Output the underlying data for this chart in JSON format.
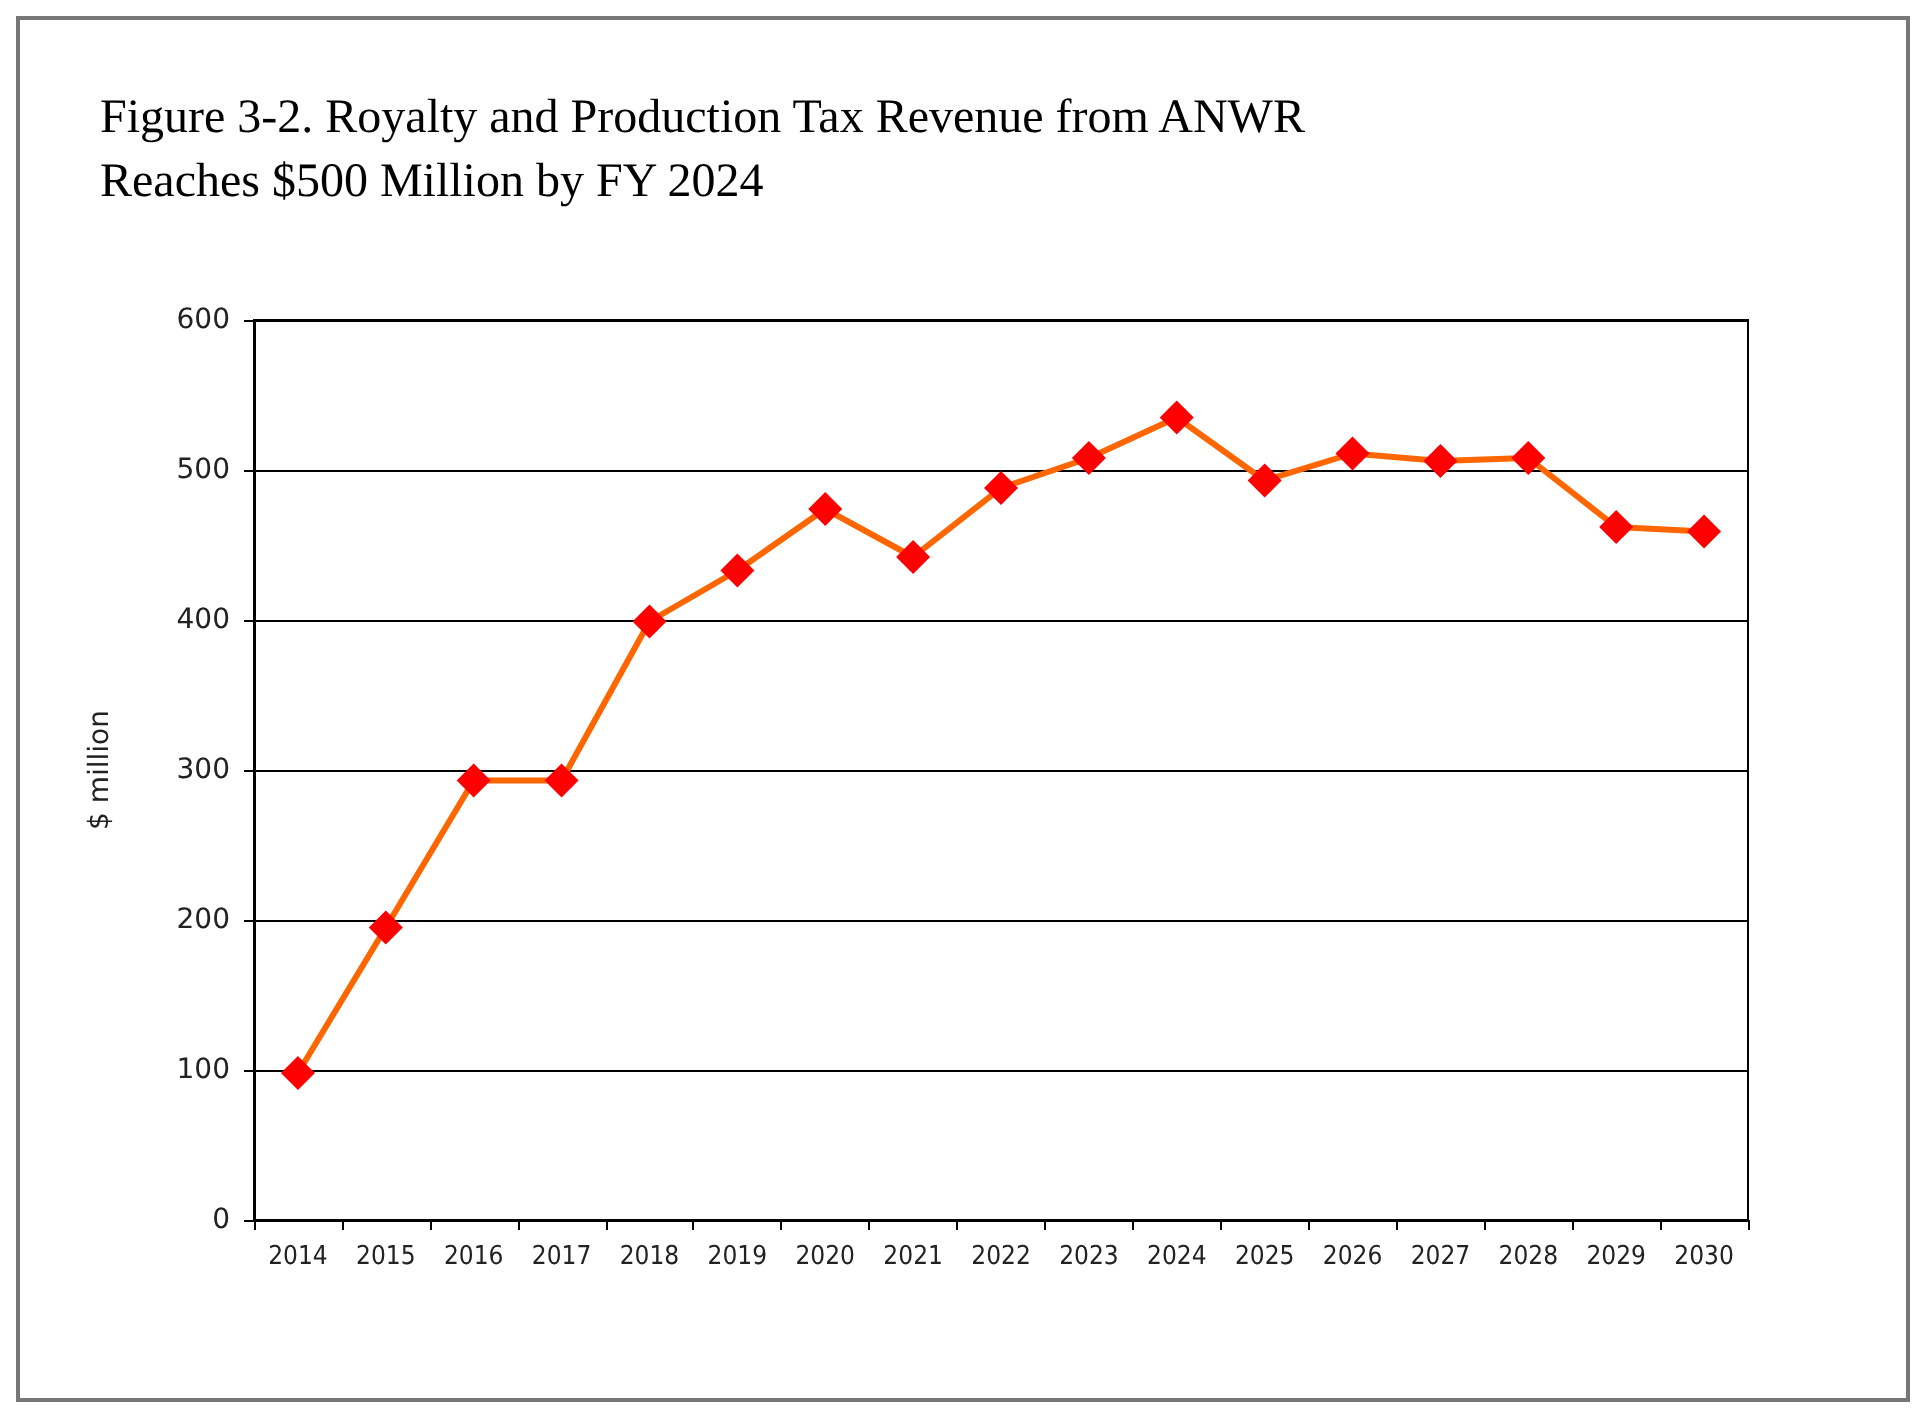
{
  "chart_data": {
    "type": "line",
    "title": "Figure 3-2. Royalty and Production Tax Revenue from ANWR Reaches $500 Million by FY 2024",
    "ylabel": "$ million",
    "categories": [
      "2014",
      "2015",
      "2016",
      "2017",
      "2018",
      "2019",
      "2020",
      "2021",
      "2022",
      "2023",
      "2024",
      "2025",
      "2026",
      "2027",
      "2028",
      "2029",
      "2030"
    ],
    "series": [
      {
        "color": "#ff6600",
        "colors": [
          "#ff0000",
          "#ff0000",
          "#ff0000",
          "#ff0000",
          "#ff0000",
          "#ff0000",
          "#ff0000",
          "#ff0000",
          "#ff0000",
          "#ff0000",
          "#ff0000",
          "#ff0000",
          "#ff0000",
          "#ff0000",
          "#ff0000",
          "#ff0000",
          "#ff0000"
        ],
        "values": [
          98,
          195,
          293,
          293,
          399,
          433,
          474,
          442,
          488,
          508,
          535,
          493,
          511,
          506,
          508,
          462,
          459
        ]
      }
    ],
    "ylim": [
      0,
      600
    ],
    "yticks": [
      0,
      100,
      200,
      300,
      400,
      500,
      600
    ],
    "grid": "y",
    "marker": "diamond",
    "line_style": "solid"
  }
}
